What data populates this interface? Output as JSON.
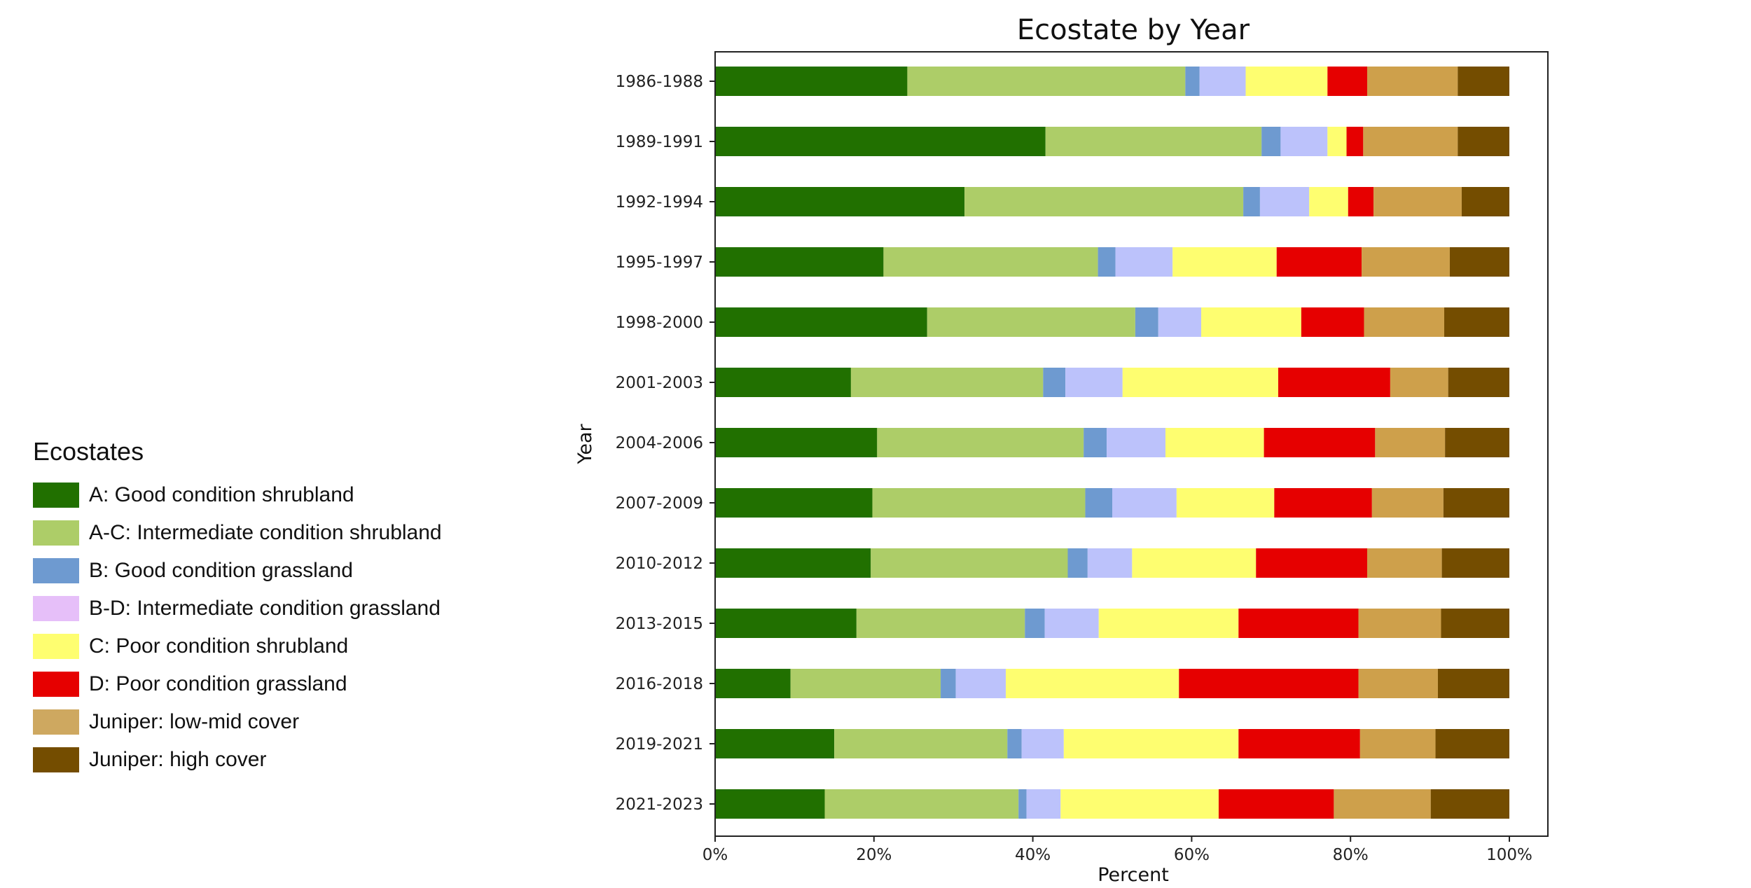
{
  "chart_data": {
    "type": "bar",
    "orientation": "horizontal",
    "stacked": true,
    "title": "Ecostate by Year",
    "xlabel": "Percent",
    "ylabel": "Year",
    "xlim": [
      0,
      100
    ],
    "xticks": [
      "0%",
      "20%",
      "40%",
      "60%",
      "80%",
      "100%"
    ],
    "xtick_values": [
      0,
      20,
      40,
      60,
      80,
      100
    ],
    "grid": false,
    "legend_title": "Ecostates",
    "legend_placement": "left",
    "categories": [
      "1986-1988",
      "1989-1991",
      "1992-1994",
      "1995-1997",
      "1998-2000",
      "2001-2003",
      "2004-2006",
      "2007-2009",
      "2010-2012",
      "2013-2015",
      "2016-2018",
      "2019-2021",
      "2021-2023"
    ],
    "series": [
      {
        "name": "A: Good condition shrubland",
        "color": "#217000",
        "legend_color": "#217000",
        "values": [
          24.2,
          41.6,
          31.4,
          21.2,
          26.7,
          17.1,
          20.4,
          19.8,
          19.6,
          17.8,
          9.5,
          15.0,
          13.8
        ]
      },
      {
        "name": "A-C: Intermediate condition shrubland",
        "color": "#adcd68",
        "legend_color": "#adcd68",
        "values": [
          35.0,
          27.2,
          35.1,
          27.0,
          26.2,
          24.2,
          26.0,
          26.8,
          24.8,
          21.2,
          18.9,
          21.8,
          24.4
        ]
      },
      {
        "name": "B: Good condition grassland",
        "color": "#6e9ad0",
        "legend_color": "#6e9ad0",
        "values": [
          1.8,
          2.4,
          2.1,
          2.2,
          2.9,
          2.8,
          2.9,
          3.4,
          2.5,
          2.5,
          1.9,
          1.8,
          1.0
        ]
      },
      {
        "name": "B-D: Intermediate condition grassland",
        "color": "#bcc2fb",
        "legend_color": "#e6bff9",
        "values": [
          5.8,
          5.9,
          6.2,
          7.2,
          5.4,
          7.2,
          7.4,
          8.1,
          5.6,
          6.8,
          6.3,
          5.3,
          4.3
        ]
      },
      {
        "name": "C: Poor condition shrubland",
        "color": "#fefe70",
        "legend_color": "#fefe70",
        "values": [
          10.3,
          2.4,
          4.9,
          13.1,
          12.6,
          19.6,
          12.4,
          12.3,
          15.6,
          17.6,
          21.8,
          22.0,
          19.9
        ]
      },
      {
        "name": "D: Poor condition grassland",
        "color": "#e60000",
        "legend_color": "#e60000",
        "values": [
          5.0,
          2.1,
          3.2,
          10.7,
          7.9,
          14.1,
          14.0,
          12.3,
          14.0,
          15.1,
          22.6,
          15.3,
          14.5
        ]
      },
      {
        "name": "Juniper: low-mid cover",
        "color": "#cea04b",
        "legend_color": "#cea860",
        "values": [
          11.4,
          11.9,
          11.1,
          11.1,
          10.1,
          7.3,
          8.8,
          9.0,
          9.4,
          10.4,
          10.0,
          9.5,
          12.2
        ]
      },
      {
        "name": "Juniper: high cover",
        "color": "#744d00",
        "legend_color": "#744d00",
        "values": [
          6.5,
          6.5,
          6.0,
          7.5,
          8.2,
          7.7,
          8.1,
          8.3,
          8.5,
          8.6,
          9.0,
          9.3,
          9.9
        ]
      }
    ]
  }
}
